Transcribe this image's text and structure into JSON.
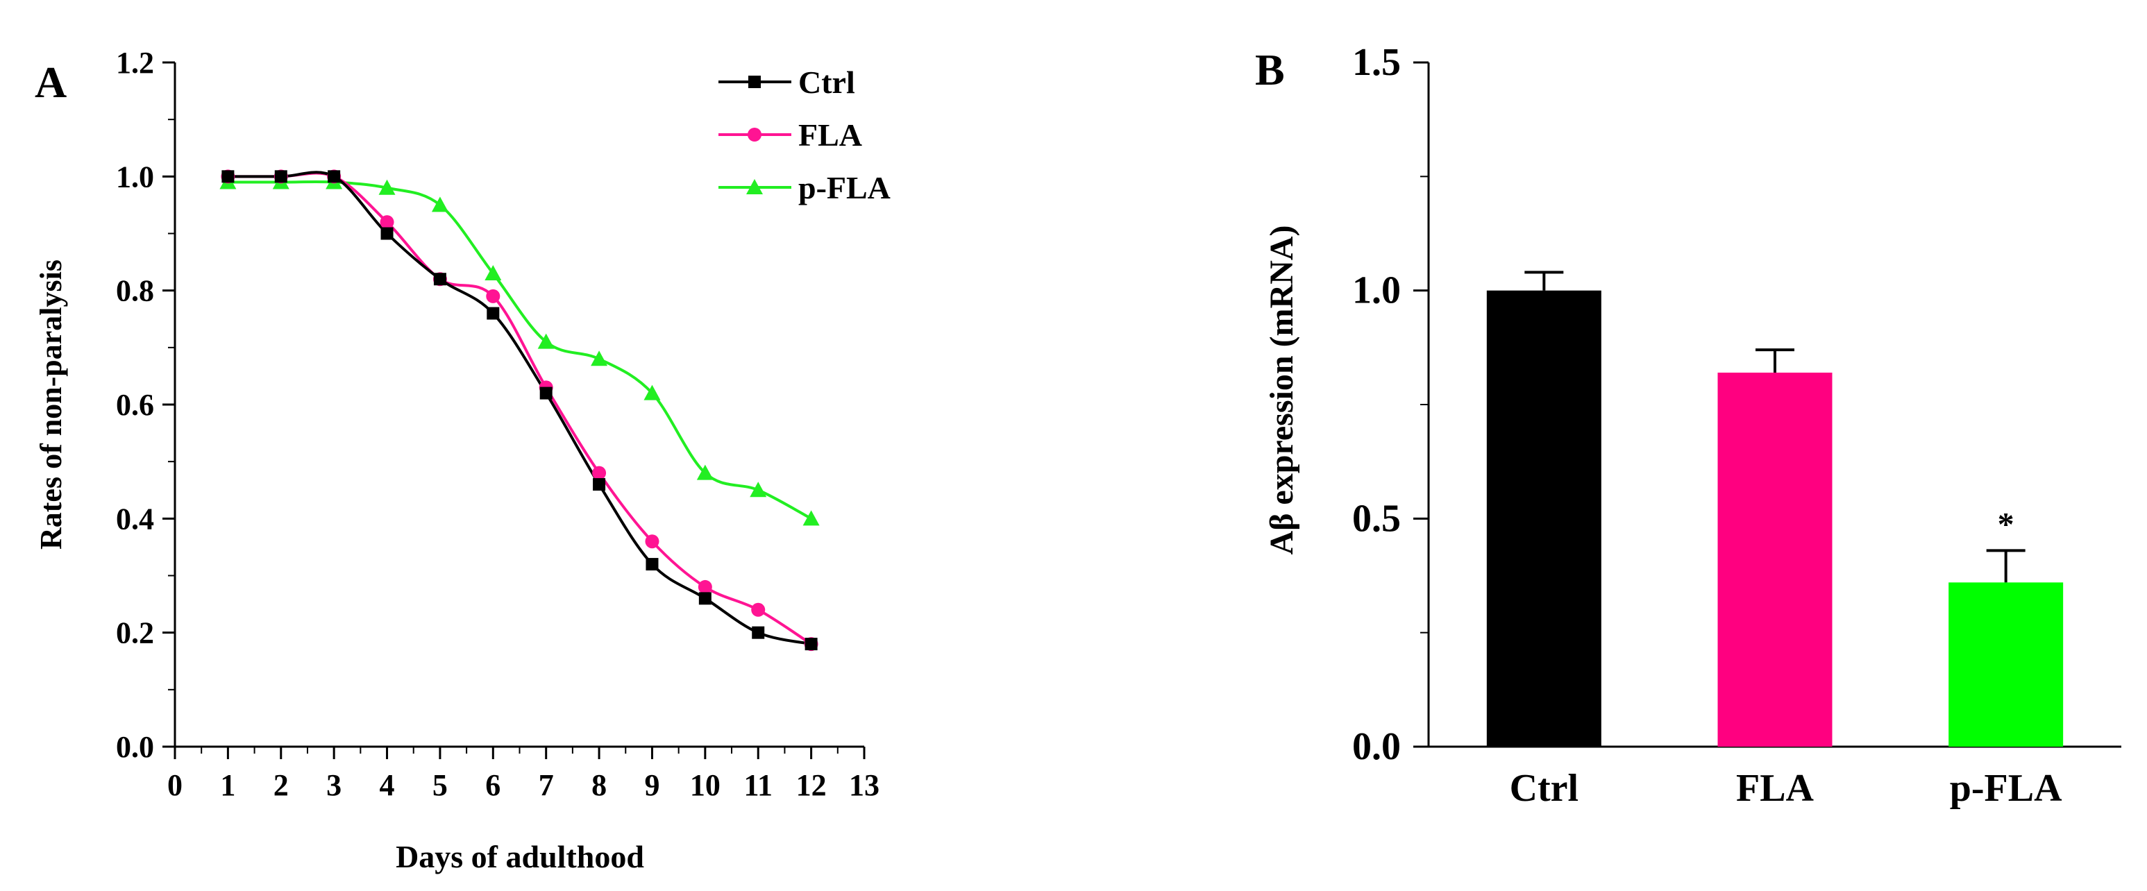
{
  "chart_data": [
    {
      "panel": "A",
      "type": "line",
      "ylabel": "Rates of non-paralysis",
      "xlabel": "Days of adulthood",
      "xlim": [
        0,
        13
      ],
      "ylim": [
        0.0,
        1.2
      ],
      "xticks": [
        "0",
        "1",
        "2",
        "3",
        "4",
        "5",
        "6",
        "7",
        "8",
        "9",
        "10",
        "11",
        "12",
        "13"
      ],
      "yticks": [
        "0.0",
        "0.2",
        "0.4",
        "0.6",
        "0.8",
        "1.0",
        "1.2"
      ],
      "legend_position": "top-right",
      "x": [
        1,
        2,
        3,
        4,
        5,
        6,
        7,
        8,
        9,
        10,
        11,
        12
      ],
      "series": [
        {
          "name": "Ctrl",
          "color": "#000000",
          "marker": "square",
          "values": [
            1.0,
            1.0,
            1.0,
            0.9,
            0.82,
            0.76,
            0.62,
            0.46,
            0.32,
            0.26,
            0.2,
            0.18
          ]
        },
        {
          "name": "FLA",
          "color": "#ff1493",
          "marker": "circle",
          "values": [
            1.0,
            1.0,
            1.0,
            0.92,
            0.82,
            0.79,
            0.63,
            0.48,
            0.36,
            0.28,
            0.24,
            0.18
          ]
        },
        {
          "name": "p-FLA",
          "color": "#22ee22",
          "marker": "triangle",
          "values": [
            0.99,
            0.99,
            0.99,
            0.98,
            0.95,
            0.83,
            0.71,
            0.68,
            0.62,
            0.48,
            0.45,
            0.4
          ]
        }
      ]
    },
    {
      "panel": "B",
      "type": "bar",
      "ylabel": "Aβ expression (mRNA)",
      "xlabel": "",
      "ylim": [
        0.0,
        1.5
      ],
      "yticks": [
        "0.0",
        "0.5",
        "1.0",
        "1.5"
      ],
      "categories": [
        "Ctrl",
        "FLA",
        "p-FLA"
      ],
      "values": [
        1.0,
        0.82,
        0.36
      ],
      "errors": [
        0.04,
        0.05,
        0.07
      ],
      "colors": [
        "#000000",
        "#ff0080",
        "#00ff00"
      ],
      "annotations": [
        "",
        "",
        "*"
      ]
    }
  ]
}
